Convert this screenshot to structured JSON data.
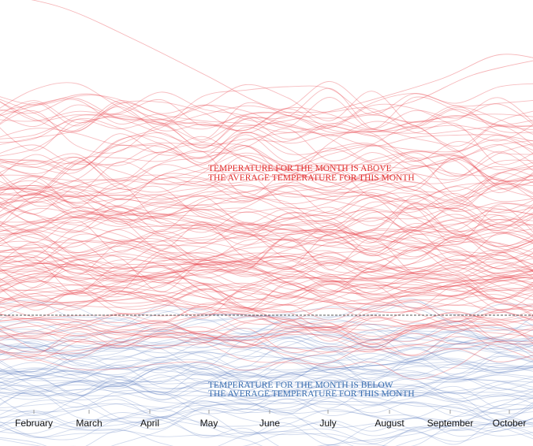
{
  "chart_data": {
    "type": "line",
    "title": "",
    "xlabel": "",
    "ylabel": "",
    "categories": [
      "February",
      "March",
      "April",
      "May",
      "June",
      "July",
      "August",
      "September",
      "October"
    ],
    "baseline_label": "",
    "annotations": {
      "above": {
        "line1": "TEMPERATURE FOR THE MONTH IS ABOVE",
        "line2": "THE AVERAGE TEMPERATURE FOR THIS MONTH"
      },
      "below": {
        "line1": "TEMPERATURE FOR THE MONTH IS BELOW",
        "line2": "THE AVERAGE TEMPERATURE FOR THIS MONTH"
      }
    },
    "colors": {
      "above": "#e8434b",
      "below": "#5b7bbf",
      "baseline": "#555555"
    },
    "grid": false,
    "legend": "none"
  }
}
